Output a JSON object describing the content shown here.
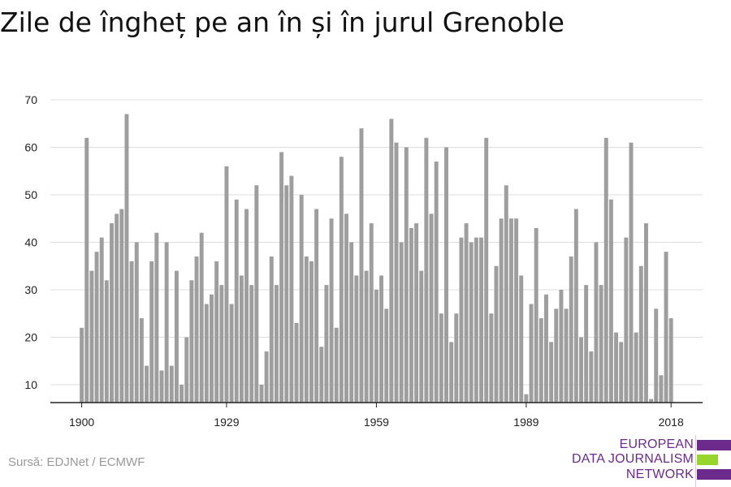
{
  "title": "Zile de îngheț pe an în și în jurul Grenoble",
  "source": "Sursă: EDJNet / ECMWF",
  "logo": {
    "line1": "EUROPEAN",
    "line2": "DATA JOURNALISM",
    "line3": "NETWORK",
    "colors": {
      "purple": "#6b2a8c",
      "green": "#97d42c"
    }
  },
  "colors": {
    "bar": "#9e9e9e",
    "grid": "#dddddd",
    "axis": "#222222"
  },
  "chart_data": {
    "type": "bar",
    "title": "Zile de îngheț pe an în și în jurul Grenoble",
    "xlabel": "",
    "ylabel": "",
    "x_ticks": [
      "1900",
      "1929",
      "1959",
      "1989",
      "2018"
    ],
    "y_ticks": [
      10,
      20,
      30,
      40,
      50,
      60,
      70
    ],
    "ylim": [
      6,
      70
    ],
    "grid": true,
    "categories": [
      1900,
      1901,
      1902,
      1903,
      1904,
      1905,
      1906,
      1907,
      1908,
      1909,
      1910,
      1911,
      1912,
      1913,
      1914,
      1915,
      1916,
      1917,
      1918,
      1919,
      1920,
      1921,
      1922,
      1923,
      1924,
      1925,
      1926,
      1927,
      1928,
      1929,
      1930,
      1931,
      1932,
      1933,
      1934,
      1935,
      1936,
      1937,
      1938,
      1939,
      1940,
      1941,
      1942,
      1943,
      1944,
      1945,
      1946,
      1947,
      1948,
      1949,
      1950,
      1951,
      1952,
      1953,
      1954,
      1955,
      1956,
      1957,
      1958,
      1959,
      1960,
      1961,
      1962,
      1963,
      1964,
      1965,
      1966,
      1967,
      1968,
      1969,
      1970,
      1971,
      1972,
      1973,
      1974,
      1975,
      1976,
      1977,
      1978,
      1979,
      1980,
      1981,
      1982,
      1983,
      1984,
      1985,
      1986,
      1987,
      1988,
      1989,
      1990,
      1991,
      1992,
      1993,
      1994,
      1995,
      1996,
      1997,
      1998,
      1999,
      2000,
      2001,
      2002,
      2003,
      2004,
      2005,
      2006,
      2007,
      2008,
      2009,
      2010,
      2011,
      2012,
      2013,
      2014,
      2015,
      2016,
      2017,
      2018
    ],
    "values": [
      22,
      62,
      34,
      38,
      41,
      32,
      44,
      46,
      47,
      67,
      36,
      40,
      24,
      14,
      36,
      42,
      13,
      40,
      14,
      34,
      10,
      20,
      32,
      37,
      42,
      27,
      29,
      36,
      31,
      56,
      27,
      49,
      33,
      47,
      31,
      52,
      10,
      17,
      37,
      31,
      59,
      52,
      54,
      23,
      50,
      37,
      36,
      47,
      18,
      31,
      45,
      22,
      58,
      46,
      40,
      33,
      64,
      34,
      44,
      30,
      33,
      26,
      66,
      61,
      40,
      60,
      43,
      44,
      34,
      62,
      46,
      57,
      25,
      60,
      19,
      25,
      41,
      44,
      40,
      41,
      41,
      62,
      25,
      35,
      45,
      52,
      45,
      45,
      33,
      8,
      27,
      43,
      24,
      29,
      19,
      26,
      30,
      26,
      37,
      47,
      20,
      31,
      17,
      40,
      31,
      62,
      49,
      21,
      19,
      41,
      61,
      21,
      35,
      44,
      7,
      26,
      12,
      38,
      24
    ]
  }
}
